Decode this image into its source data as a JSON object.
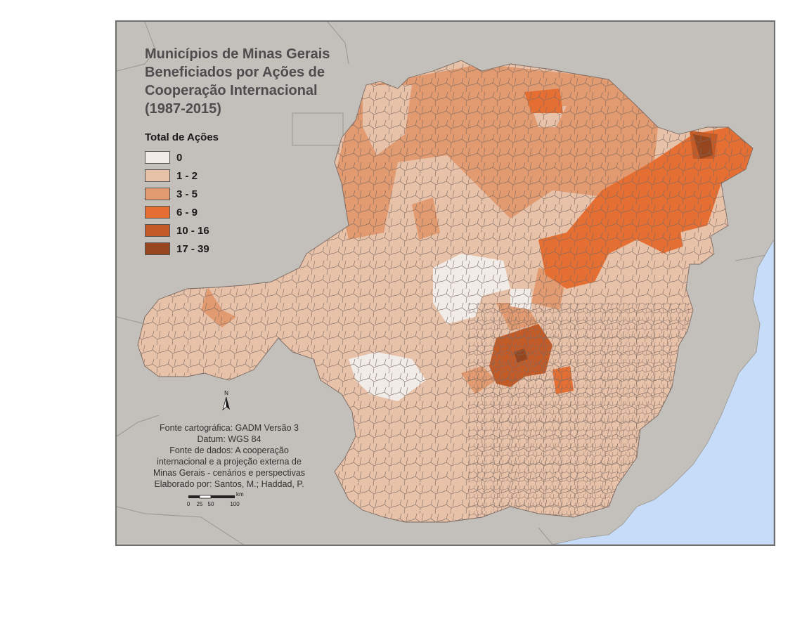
{
  "title_lines": [
    "Municípios de Minas Gerais",
    "Beneficiados por Ações de",
    "Cooperação Internacional",
    "(1987-2015)"
  ],
  "legend": {
    "title": "Total de Ações",
    "items": [
      {
        "label": "0",
        "color": "#f2ece8"
      },
      {
        "label": "1 - 2",
        "color": "#e8c1a9"
      },
      {
        "label": "3 - 5",
        "color": "#e29a70"
      },
      {
        "label": "6 - 9",
        "color": "#e56f33"
      },
      {
        "label": "10 - 16",
        "color": "#c45a26"
      },
      {
        "label": "17 - 39",
        "color": "#96461f"
      }
    ]
  },
  "north_arrow": {
    "label": "N"
  },
  "credits": [
    "Fonte cartográfica: GADM Versão 3",
    "Datum: WGS 84",
    "Fonte de dados: A cooperação",
    "internacional e a projeção externa de",
    "Minas Gerais - cenários e perspectivas",
    "Elaborado por: Santos, M.; Haddad, P."
  ],
  "scale_bar": {
    "unit": "km",
    "ticks": [
      "0",
      "25",
      "50",
      "100"
    ]
  },
  "colors": {
    "background": "#c3bfba",
    "ocean": "#c6dcf8",
    "neighbor_border": "#9a9691",
    "municipal_border": "#7a6a62"
  }
}
